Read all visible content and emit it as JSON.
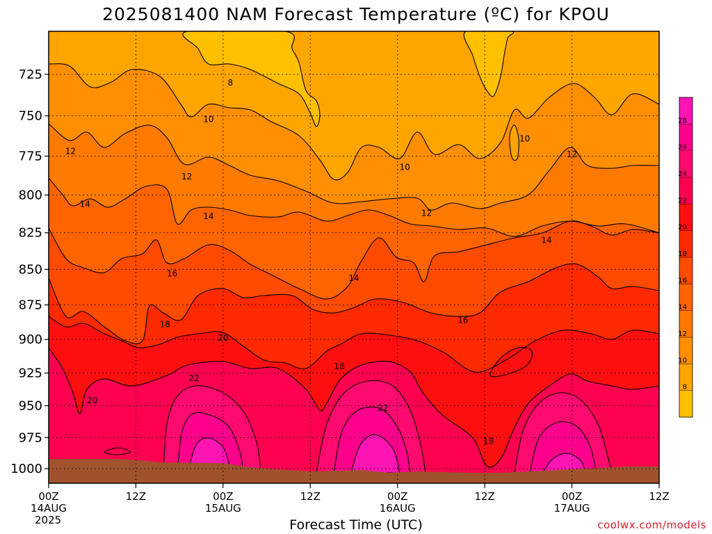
{
  "title": "2025081400 NAM Forecast Temperature (ºC) for KPOU",
  "xlabel": "Forecast Time (UTC)",
  "credit": "coolwx.com/models",
  "chart_data": {
    "type": "heatmap",
    "title": "2025081400 NAM Forecast Temperature (ºC) for KPOU",
    "xlabel": "Forecast Time (UTC)",
    "ylabel": "",
    "y_axis": {
      "scale": "log-pressure",
      "inverted": true,
      "range": [
        700,
        1012
      ],
      "ticks": [
        "725",
        "750",
        "775",
        "800",
        "825",
        "850",
        "875",
        "900",
        "925",
        "950",
        "975",
        "1000"
      ]
    },
    "x_axis": {
      "range_hours": [
        0,
        84
      ],
      "ticks": [
        {
          "hour": 0,
          "label": "00Z",
          "sub": "14AUG",
          "sub2": "2025"
        },
        {
          "hour": 12,
          "label": "12Z",
          "sub": "",
          "sub2": ""
        },
        {
          "hour": 24,
          "label": "00Z",
          "sub": "15AUG",
          "sub2": ""
        },
        {
          "hour": 36,
          "label": "12Z",
          "sub": "",
          "sub2": ""
        },
        {
          "hour": 48,
          "label": "00Z",
          "sub": "16AUG",
          "sub2": ""
        },
        {
          "hour": 60,
          "label": "12Z",
          "sub": "",
          "sub2": ""
        },
        {
          "hour": 72,
          "label": "00Z",
          "sub": "17AUG",
          "sub2": ""
        },
        {
          "hour": 84,
          "label": "12Z",
          "sub": "",
          "sub2": ""
        }
      ]
    },
    "grid": true,
    "colorbar": {
      "placement": "right",
      "levels": [
        6,
        8,
        10,
        12,
        14,
        16,
        18,
        20,
        22,
        24,
        26,
        28,
        30
      ],
      "tick_labels": [
        "8",
        "10",
        "12",
        "14",
        "16",
        "18",
        "20",
        "22",
        "24",
        "26",
        "28"
      ],
      "colors": [
        "#ffc000",
        "#ffa500",
        "#ff8f00",
        "#ff7a00",
        "#ff6400",
        "#ff4b00",
        "#ff2a00",
        "#ff0f0f",
        "#ff0050",
        "#ff0a6e",
        "#ff008c",
        "#ff14b4"
      ]
    },
    "contour_labels": [
      {
        "text": "8",
        "hour": 25.0,
        "p": 730
      },
      {
        "text": "10",
        "hour": 22.0,
        "p": 752
      },
      {
        "text": "10",
        "hour": 49.0,
        "p": 782
      },
      {
        "text": "10",
        "hour": 65.5,
        "p": 764
      },
      {
        "text": "12",
        "hour": 3.0,
        "p": 772
      },
      {
        "text": "12",
        "hour": 19.0,
        "p": 788
      },
      {
        "text": "12",
        "hour": 52.0,
        "p": 812
      },
      {
        "text": "12",
        "hour": 72.0,
        "p": 774
      },
      {
        "text": "14",
        "hour": 5.0,
        "p": 806
      },
      {
        "text": "14",
        "hour": 22.0,
        "p": 814
      },
      {
        "text": "14",
        "hour": 42.0,
        "p": 856
      },
      {
        "text": "14",
        "hour": 68.5,
        "p": 830
      },
      {
        "text": "16",
        "hour": 17.0,
        "p": 853
      },
      {
        "text": "16",
        "hour": 57.0,
        "p": 886
      },
      {
        "text": "18",
        "hour": 16.0,
        "p": 889
      },
      {
        "text": "18",
        "hour": 40.0,
        "p": 920
      },
      {
        "text": "18",
        "hour": 60.5,
        "p": 978
      },
      {
        "text": "20",
        "hour": 24.0,
        "p": 899
      },
      {
        "text": "20",
        "hour": 6.0,
        "p": 946
      },
      {
        "text": "22",
        "hour": 20.0,
        "p": 929
      },
      {
        "text": "22",
        "hour": 46.0,
        "p": 952
      }
    ]
  }
}
